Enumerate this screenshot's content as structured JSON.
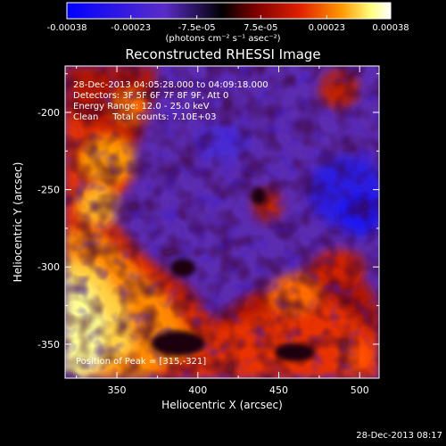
{
  "colorbar": {
    "tick_labels": [
      "-0.00038",
      "-0.00023",
      "-7.5e-05",
      "7.5e-05",
      "0.00023",
      "0.00038"
    ],
    "tick_values": [
      -0.00038,
      -0.00023,
      -7.5e-05,
      7.5e-05,
      0.00023,
      0.00038
    ],
    "range": [
      -0.00038,
      0.00038
    ],
    "units_label": "(photons cm⁻² s⁻¹ asec⁻²)",
    "colors": [
      "#0000ff",
      "#5a2cc8",
      "#000000",
      "#7a0000",
      "#e02000",
      "#ff9a00",
      "#ffff80",
      "#ffffff"
    ]
  },
  "chart_data": {
    "type": "heatmap",
    "title": "Reconstructed RHESSI Image",
    "xlabel": "Heliocentric X (arcsec)",
    "ylabel": "Heliocentric Y (arcsec)",
    "xlim": [
      318,
      512
    ],
    "ylim": [
      -372,
      -170
    ],
    "x_ticks": [
      350,
      400,
      450,
      500
    ],
    "y_ticks": [
      -200,
      -250,
      -300,
      -350
    ],
    "annotations": [
      "28-Dec-2013 04:05:28.000 to 04:09:18.000",
      "Detectors: 3F 5F 6F 7F 8F 9F, Att 0",
      "Energy Range: 12.0 - 25.0 keV",
      "Clean     Total counts: 7.10E+03"
    ],
    "peak_label": "Position of Peak = [315,-321]",
    "peak": [
      315,
      -321
    ]
  },
  "footer": {
    "timestamp": "28-Dec-2013 08:17"
  }
}
